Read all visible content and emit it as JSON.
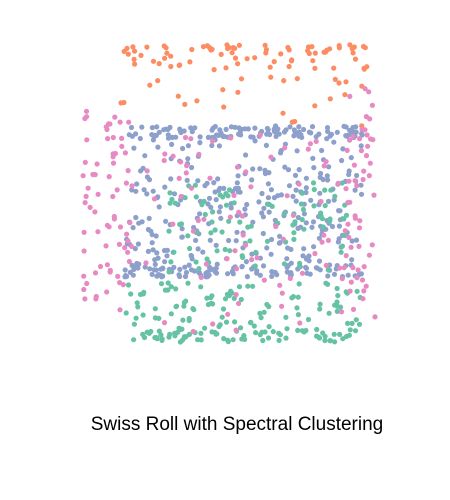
{
  "chart_data": {
    "type": "scatter",
    "title": "Swiss Roll with Spectral Clustering",
    "xlabel": "",
    "ylabel": "",
    "xlim": [
      0,
      1
    ],
    "ylim": [
      0,
      1
    ],
    "axes_visible": false,
    "grid": false,
    "legend": "none",
    "seed": 7,
    "clusters": [
      {
        "color": "#fc8d62",
        "regions": [
          {
            "count": 75,
            "x": [
              0.0,
              1.0
            ],
            "y": [
              0.92,
              1.0
            ],
            "jitter": 0.006,
            "sampling": "top-biased"
          },
          {
            "count": 25,
            "x": [
              0.0,
              1.0
            ],
            "y": [
              0.73,
              0.92
            ],
            "jitter": 0.0,
            "sampling": "uniform"
          }
        ]
      },
      {
        "color": "#8da0cb",
        "regions": [
          {
            "count": 110,
            "x": [
              0.02,
              0.98
            ],
            "y": [
              0.69,
              0.73
            ],
            "jitter": 0.0,
            "sampling": "uniform"
          },
          {
            "count": 95,
            "x": [
              0.02,
              0.98
            ],
            "y": [
              0.22,
              0.26
            ],
            "jitter": 0.0,
            "sampling": "uniform"
          },
          {
            "count": 260,
            "x": [
              0.02,
              0.98
            ],
            "y": [
              0.26,
              0.69
            ],
            "jitter": 0.0,
            "sampling": "uniform"
          }
        ]
      },
      {
        "color": "#66c2a5",
        "regions": [
          {
            "count": 70,
            "x": [
              0.02,
              0.95
            ],
            "y": [
              0.0,
              0.04
            ],
            "jitter": 0.0,
            "sampling": "uniform"
          },
          {
            "count": 100,
            "x": [
              0.02,
              0.97
            ],
            "y": [
              0.04,
              0.2
            ],
            "jitter": 0.0,
            "sampling": "uniform"
          },
          {
            "count": 90,
            "x": [
              0.18,
              0.95
            ],
            "y": [
              0.23,
              0.55
            ],
            "jitter": 0.0,
            "sampling": "uniform"
          }
        ]
      },
      {
        "color": "#e78ac3",
        "regions": [
          {
            "count": 70,
            "x": [
              -0.15,
              0.05
            ],
            "y": [
              0.1,
              0.78
            ],
            "jitter": 0.0,
            "sampling": "uniform"
          },
          {
            "count": 55,
            "x": [
              0.9,
              1.03
            ],
            "y": [
              0.08,
              0.88
            ],
            "jitter": 0.0,
            "sampling": "uniform"
          },
          {
            "count": 75,
            "x": [
              0.1,
              0.9
            ],
            "y": [
              0.03,
              0.7
            ],
            "jitter": 0.0,
            "sampling": "uniform"
          }
        ]
      }
    ]
  }
}
